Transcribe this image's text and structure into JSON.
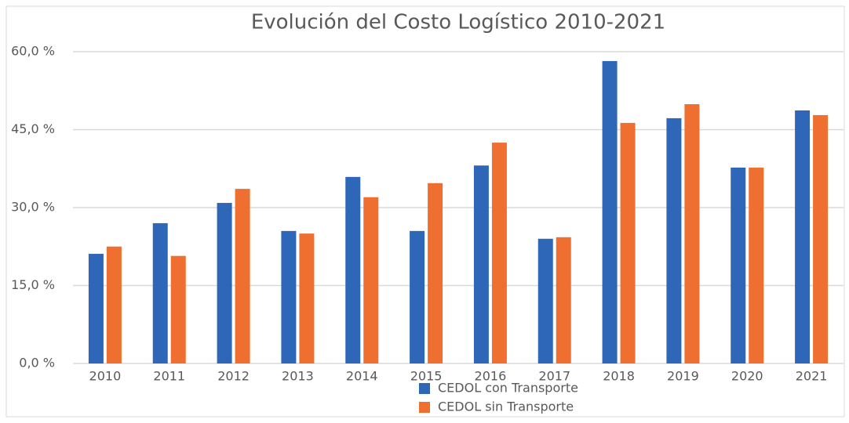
{
  "chart_data": {
    "type": "bar",
    "title": "Evolución del Costo Logístico 2010-2021",
    "categories": [
      "2010",
      "2011",
      "2012",
      "2013",
      "2014",
      "2015",
      "2016",
      "2017",
      "2018",
      "2019",
      "2020",
      "2021"
    ],
    "series": [
      {
        "name": "CEDOL con Transporte",
        "color": "#2e67b8",
        "values": [
          21.1,
          27.0,
          30.9,
          25.5,
          35.9,
          25.5,
          38.1,
          24.0,
          58.2,
          47.2,
          37.7,
          48.7
        ]
      },
      {
        "name": "CEDOL sin Transporte",
        "color": "#ef6f31",
        "values": [
          22.5,
          20.7,
          33.6,
          25.0,
          32.0,
          34.7,
          42.5,
          24.3,
          46.3,
          49.9,
          37.7,
          47.8
        ]
      }
    ],
    "ylim": [
      0,
      60
    ],
    "yticks": [
      {
        "value": 0,
        "label": "0,0 %"
      },
      {
        "value": 15,
        "label": "15,0 %"
      },
      {
        "value": 30,
        "label": "30,0 %"
      },
      {
        "value": 45,
        "label": "45,0 %"
      },
      {
        "value": 60,
        "label": "60,0 %"
      }
    ],
    "grid": true,
    "legend": "bottom"
  }
}
